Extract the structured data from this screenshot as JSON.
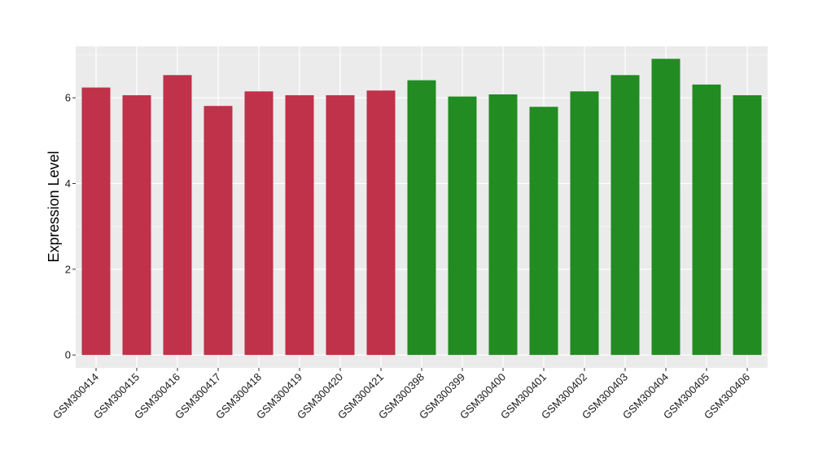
{
  "chart_data": {
    "type": "bar",
    "title": "",
    "xlabel": "",
    "ylabel": "Expression Level",
    "ylim": [
      -0.3,
      7.2
    ],
    "yticks": [
      0,
      2,
      4,
      6
    ],
    "grid": true,
    "background": "#ebebeb",
    "categories": [
      "GSM300414",
      "GSM300415",
      "GSM300416",
      "GSM300417",
      "GSM300418",
      "GSM300419",
      "GSM300420",
      "GSM300421",
      "GSM300398",
      "GSM300399",
      "GSM300400",
      "GSM300401",
      "GSM300402",
      "GSM300403",
      "GSM300404",
      "GSM300405",
      "GSM300406"
    ],
    "values": [
      6.24,
      6.06,
      6.53,
      5.81,
      6.15,
      6.06,
      6.06,
      6.17,
      6.41,
      6.03,
      6.08,
      5.79,
      6.15,
      6.53,
      6.91,
      6.31,
      6.06
    ],
    "colors": [
      "#c0314a",
      "#c0314a",
      "#c0314a",
      "#c0314a",
      "#c0314a",
      "#c0314a",
      "#c0314a",
      "#c0314a",
      "#228b22",
      "#228b22",
      "#228b22",
      "#228b22",
      "#228b22",
      "#228b22",
      "#228b22",
      "#228b22",
      "#228b22"
    ]
  }
}
